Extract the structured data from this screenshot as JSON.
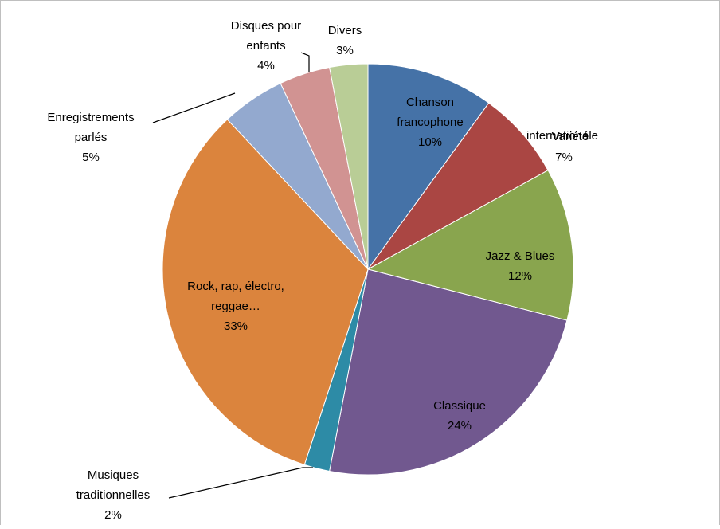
{
  "chart_data": {
    "type": "pie",
    "title": "",
    "start_angle_deg": 0,
    "direction": "clockwise",
    "legend": "none",
    "slices": [
      {
        "label": "Chanson francophone",
        "value_label": "10%",
        "value": 10,
        "color": "#4572a7"
      },
      {
        "label": "Variété internationale",
        "value_label": "7%",
        "value": 7,
        "color": "#aa4643"
      },
      {
        "label": "Jazz & Blues",
        "value_label": "12%",
        "value": 12,
        "color": "#89a54e"
      },
      {
        "label": "Classique",
        "value_label": "24%",
        "value": 24,
        "color": "#71588f"
      },
      {
        "label": "Musiques traditionnelles",
        "value_label": "2%",
        "value": 2,
        "color": "#2d8ba6"
      },
      {
        "label": "Rock, rap, électro, reggae…",
        "value_label": "33%",
        "value": 33,
        "color": "#db843d"
      },
      {
        "label": "Enregistrements parlés",
        "value_label": "5%",
        "value": 5,
        "color": "#93a9cf"
      },
      {
        "label": "Disques pour enfants",
        "value_label": "4%",
        "value": 4,
        "color": "#d19392"
      },
      {
        "label": "Divers",
        "value_label": "3%",
        "value": 3,
        "color": "#b9cd96"
      }
    ]
  }
}
